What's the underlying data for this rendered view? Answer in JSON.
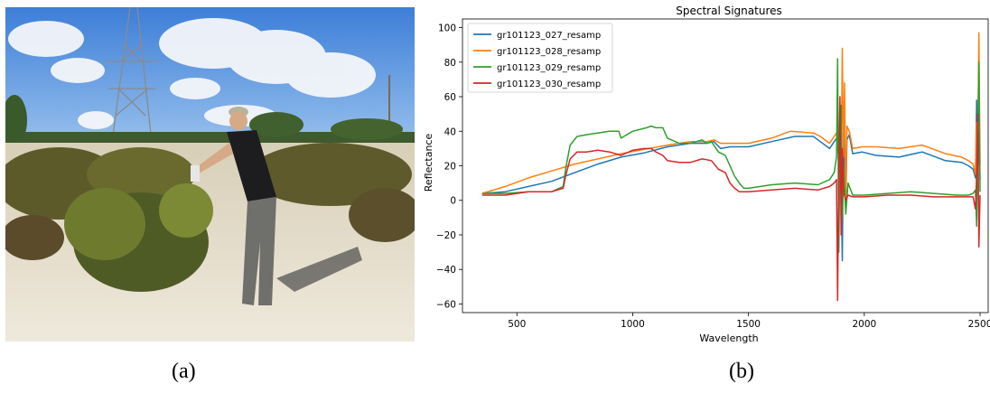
{
  "captions": {
    "a": "(a)",
    "b": "(b)"
  },
  "photo": {
    "description_icon": "field-photo-icon"
  },
  "chart_data": {
    "type": "line",
    "title": "Spectral Signatures",
    "xlabel": "Wavelength",
    "ylabel": "Reflectance",
    "xlim": [
      265,
      2535
    ],
    "ylim": [
      -65,
      105
    ],
    "xticks": [
      500,
      1000,
      1500,
      2000,
      2500
    ],
    "yticks": [
      -60,
      -40,
      -20,
      0,
      20,
      40,
      60,
      80,
      100
    ],
    "grid": false,
    "legend_position": "top-left",
    "series": [
      {
        "name": "gr101123_027_resamp",
        "color": "#1f77b4",
        "x": [
          350,
          450,
          550,
          650,
          750,
          850,
          950,
          1050,
          1150,
          1250,
          1320,
          1350,
          1380,
          1420,
          1500,
          1600,
          1700,
          1780,
          1810,
          1850,
          1880,
          1890,
          1900,
          1905,
          1910,
          1915,
          1920,
          1925,
          1935,
          1950,
          1990,
          2050,
          2150,
          2250,
          2350,
          2420,
          2450,
          2470,
          2480,
          2485,
          2490,
          2495,
          2500
        ],
        "y": [
          4,
          5,
          8,
          11,
          16,
          21,
          25,
          27.5,
          31,
          33,
          33,
          34,
          30,
          31,
          31,
          34,
          37,
          37,
          34,
          30,
          36,
          24,
          10,
          -35,
          45,
          20,
          -5,
          35,
          38,
          27,
          28,
          26,
          25,
          28,
          23,
          22,
          20,
          18,
          13,
          58,
          10,
          40,
          12
        ]
      },
      {
        "name": "gr101123_028_resamp",
        "color": "#ff7f0e",
        "x": [
          350,
          450,
          550,
          650,
          750,
          850,
          950,
          1050,
          1150,
          1250,
          1320,
          1350,
          1380,
          1420,
          1500,
          1600,
          1680,
          1780,
          1810,
          1850,
          1880,
          1890,
          1900,
          1905,
          1910,
          1915,
          1920,
          1925,
          1935,
          1950,
          1990,
          2050,
          2150,
          2250,
          2350,
          2420,
          2450,
          2470,
          2480,
          2485,
          2490,
          2495,
          2500
        ],
        "y": [
          4,
          8,
          13,
          17,
          21,
          24,
          27,
          29.5,
          32,
          34,
          34,
          35,
          33,
          33,
          33,
          36,
          40,
          39,
          37,
          33,
          39,
          28,
          12,
          88,
          25,
          68,
          -5,
          43,
          40,
          30,
          31,
          31,
          30,
          32,
          27,
          25,
          23,
          21,
          15,
          45,
          30,
          97,
          20
        ]
      },
      {
        "name": "gr101123_029_resamp",
        "color": "#2ca02c",
        "x": [
          350,
          450,
          550,
          650,
          700,
          710,
          730,
          760,
          800,
          900,
          940,
          950,
          1000,
          1060,
          1080,
          1100,
          1130,
          1150,
          1200,
          1250,
          1300,
          1320,
          1340,
          1370,
          1400,
          1420,
          1440,
          1460,
          1480,
          1500,
          1600,
          1700,
          1800,
          1850,
          1870,
          1880,
          1885,
          1890,
          1895,
          1900,
          1905,
          1910,
          1920,
          1930,
          1950,
          2000,
          2100,
          2200,
          2300,
          2400,
          2450,
          2470,
          2480,
          2485,
          2490,
          2495,
          2500
        ],
        "y": [
          4,
          4,
          5,
          5,
          8,
          18,
          32,
          37,
          38,
          40,
          40,
          36,
          40,
          42,
          43,
          42,
          42,
          36,
          33,
          33,
          35,
          33,
          34,
          28,
          26,
          20,
          14,
          10,
          7,
          7,
          9,
          10,
          9,
          12,
          16,
          25,
          82,
          -30,
          30,
          55,
          -10,
          20,
          -8,
          10,
          3,
          3,
          4,
          5,
          4,
          3,
          3,
          4,
          6,
          -15,
          40,
          80,
          5
        ]
      },
      {
        "name": "gr101123_030_resamp",
        "color": "#d62728",
        "x": [
          350,
          450,
          550,
          650,
          700,
          710,
          730,
          760,
          800,
          850,
          900,
          950,
          1000,
          1050,
          1080,
          1100,
          1130,
          1150,
          1200,
          1250,
          1300,
          1340,
          1370,
          1400,
          1420,
          1440,
          1460,
          1480,
          1500,
          1600,
          1700,
          1800,
          1850,
          1870,
          1880,
          1885,
          1890,
          1895,
          1900,
          1905,
          1910,
          1920,
          1930,
          1950,
          2000,
          2100,
          2200,
          2300,
          2400,
          2450,
          2470,
          2480,
          2485,
          2490,
          2495,
          2500
        ],
        "y": [
          3,
          3,
          5,
          5,
          7,
          14,
          24,
          28,
          28,
          29,
          28,
          26,
          29,
          30,
          30,
          28,
          26,
          23,
          22,
          22,
          24,
          23,
          18,
          16,
          10,
          7,
          5,
          5,
          5,
          6,
          7,
          6,
          8,
          10,
          12,
          -58,
          18,
          60,
          -20,
          30,
          5,
          0,
          3,
          2,
          2,
          3,
          3,
          2,
          2,
          2,
          2,
          -5,
          15,
          50,
          -27,
          3
        ]
      }
    ]
  }
}
